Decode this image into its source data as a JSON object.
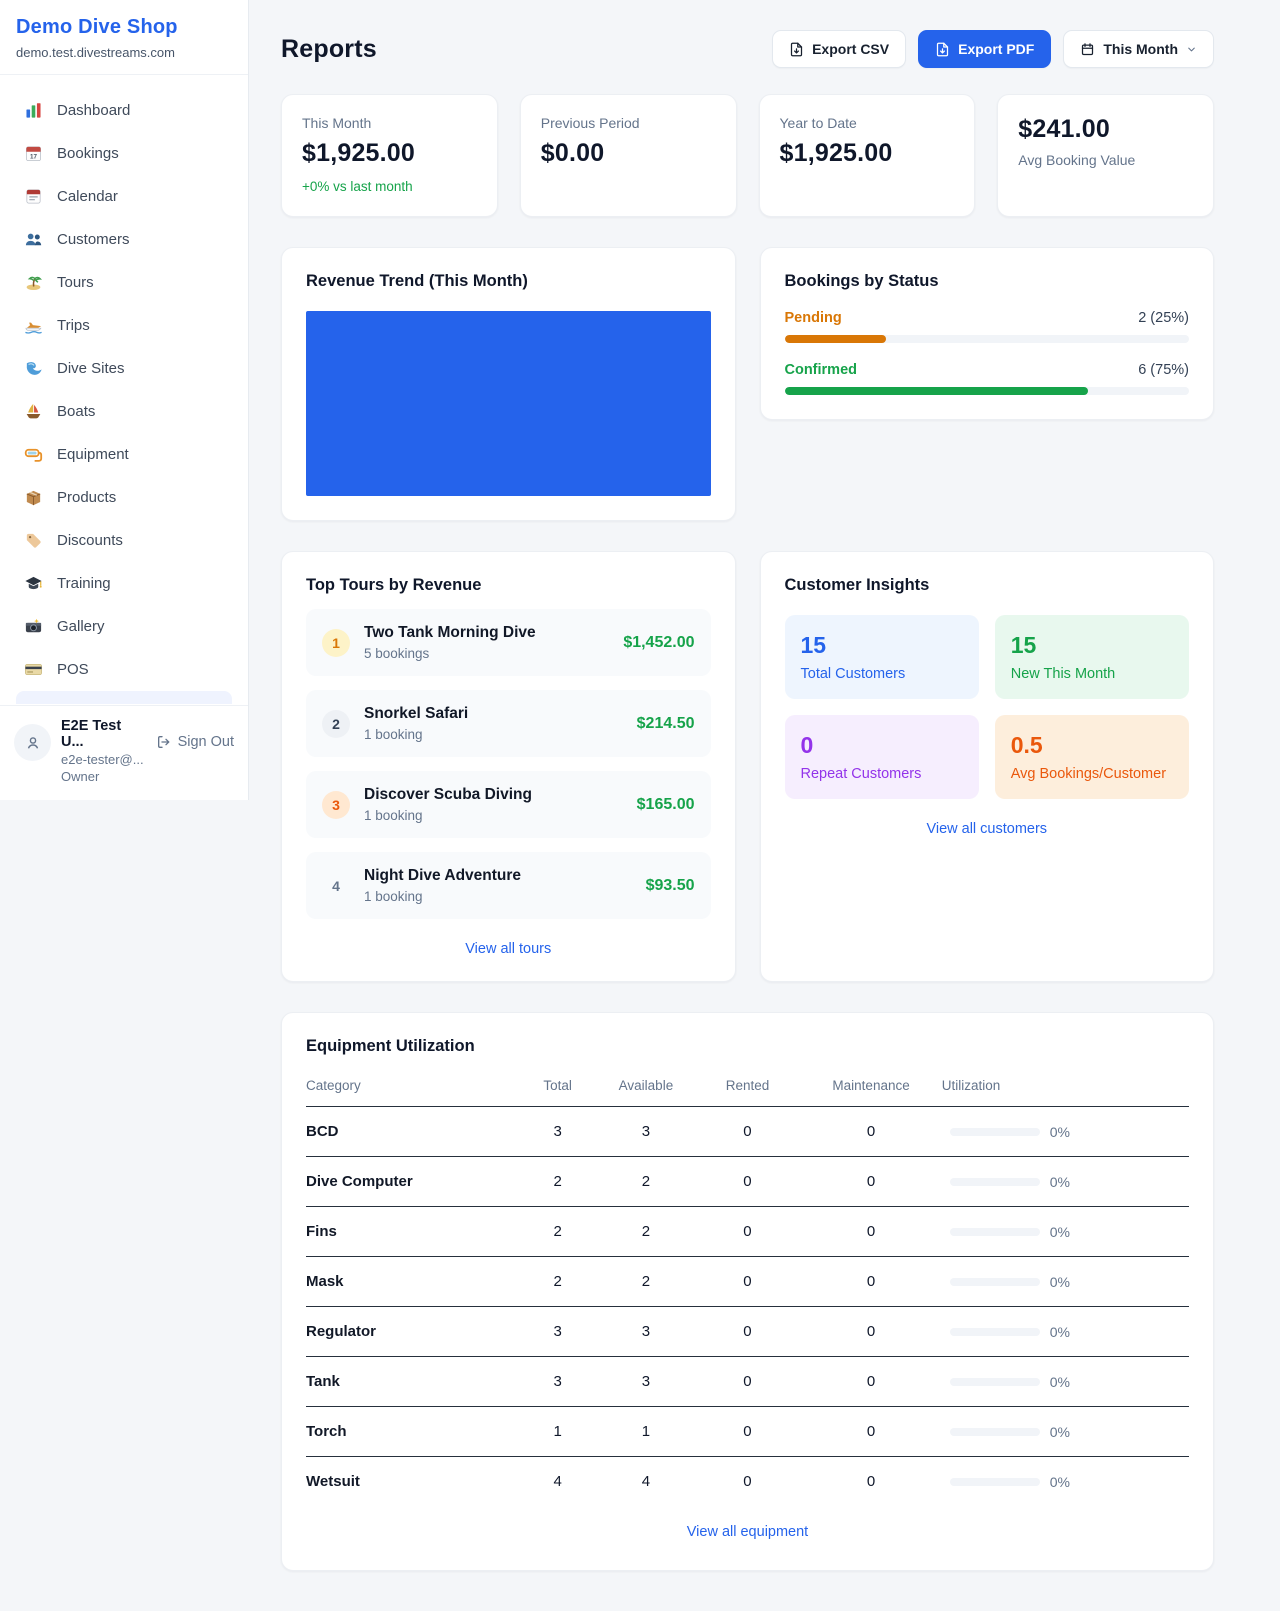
{
  "colors": {
    "accent_blue": "#2563eb",
    "green": "#16a34a",
    "amber": "#d97706",
    "orange": "#ea580c",
    "purple": "#9333ea"
  },
  "sidebar": {
    "brand": {
      "name": "Demo Dive Shop",
      "domain": "demo.test.divestreams.com"
    },
    "items": [
      {
        "icon": "bar-chart-icon",
        "label": "Dashboard"
      },
      {
        "icon": "calendar-date-icon",
        "label": "Bookings"
      },
      {
        "icon": "calendar-pad-icon",
        "label": "Calendar"
      },
      {
        "icon": "people-icon",
        "label": "Customers"
      },
      {
        "icon": "island-icon",
        "label": "Tours"
      },
      {
        "icon": "speedboat-icon",
        "label": "Trips"
      },
      {
        "icon": "wave-icon",
        "label": "Dive Sites"
      },
      {
        "icon": "sailboat-icon",
        "label": "Boats"
      },
      {
        "icon": "dive-mask-icon",
        "label": "Equipment"
      },
      {
        "icon": "package-icon",
        "label": "Products"
      },
      {
        "icon": "tag-icon",
        "label": "Discounts"
      },
      {
        "icon": "graduation-cap-icon",
        "label": "Training"
      },
      {
        "icon": "camera-icon",
        "label": "Gallery"
      },
      {
        "icon": "credit-card-icon",
        "label": "POS"
      }
    ],
    "user": {
      "name": "E2E Test U...",
      "email": "e2e-tester@...",
      "role": "Owner",
      "sign_out": "Sign Out"
    }
  },
  "header": {
    "title": "Reports",
    "export_csv": "Export CSV",
    "export_pdf": "Export PDF",
    "period": "This Month"
  },
  "stats": [
    {
      "label": "This Month",
      "value": "$1,925.00",
      "delta": "+0% vs last month"
    },
    {
      "label": "Previous Period",
      "value": "$0.00"
    },
    {
      "label": "Year to Date",
      "value": "$1,925.00"
    },
    {
      "label": "Avg Booking Value",
      "value": "$241.00"
    }
  ],
  "revenue_trend": {
    "title": "Revenue Trend (This Month)",
    "bar_color": "#2563eb"
  },
  "chart_data": [
    {
      "type": "bar",
      "title": "Revenue Trend (This Month)",
      "categories": [
        "This Month"
      ],
      "values": [
        1925
      ],
      "ylim": [
        0,
        1925
      ],
      "legend": "off",
      "grid": "off",
      "note": "single full-width solid blue bar, no axes or tick labels visible"
    },
    {
      "type": "bar",
      "title": "Bookings by Status",
      "categories": [
        "Pending",
        "Confirmed"
      ],
      "values": [
        2,
        6
      ],
      "percentages": [
        25,
        75
      ],
      "orientation": "horizontal-progress",
      "colors": [
        "#d97706",
        "#16a34a"
      ]
    }
  ],
  "bookings_by_status": {
    "title": "Bookings by Status",
    "rows": [
      {
        "label": "Pending",
        "count": "2 (25%)",
        "pct": 25,
        "color": "#d97706"
      },
      {
        "label": "Confirmed",
        "count": "6 (75%)",
        "pct": 75,
        "color": "#16a34a"
      }
    ]
  },
  "top_tours": {
    "title": "Top Tours by Revenue",
    "link": "View all tours",
    "items": [
      {
        "rank": "1",
        "name": "Two Tank Morning Dive",
        "bookings": "5 bookings",
        "revenue": "$1,452.00"
      },
      {
        "rank": "2",
        "name": "Snorkel Safari",
        "bookings": "1 booking",
        "revenue": "$214.50"
      },
      {
        "rank": "3",
        "name": "Discover Scuba Diving",
        "bookings": "1 booking",
        "revenue": "$165.00"
      },
      {
        "rank": "4",
        "name": "Night Dive Adventure",
        "bookings": "1 booking",
        "revenue": "$93.50"
      }
    ]
  },
  "customer_insights": {
    "title": "Customer Insights",
    "link": "View all customers",
    "tiles": [
      {
        "value": "15",
        "label": "Total Customers",
        "color": "#2563eb"
      },
      {
        "value": "15",
        "label": "New This Month",
        "color": "#16a34a"
      },
      {
        "value": "0",
        "label": "Repeat Customers",
        "color": "#9333ea"
      },
      {
        "value": "0.5",
        "label": "Avg Bookings/Customer",
        "color": "#ea580c"
      }
    ]
  },
  "equipment": {
    "title": "Equipment Utilization",
    "link": "View all equipment",
    "columns": [
      "Category",
      "Total",
      "Available",
      "Rented",
      "Maintenance",
      "Utilization"
    ],
    "rows": [
      {
        "category": "BCD",
        "total": "3",
        "available": "3",
        "rented": "0",
        "maintenance": "0",
        "utilization": "0%",
        "utilization_pct": 0
      },
      {
        "category": "Dive Computer",
        "total": "2",
        "available": "2",
        "rented": "0",
        "maintenance": "0",
        "utilization": "0%",
        "utilization_pct": 0
      },
      {
        "category": "Fins",
        "total": "2",
        "available": "2",
        "rented": "0",
        "maintenance": "0",
        "utilization": "0%",
        "utilization_pct": 0
      },
      {
        "category": "Mask",
        "total": "2",
        "available": "2",
        "rented": "0",
        "maintenance": "0",
        "utilization": "0%",
        "utilization_pct": 0
      },
      {
        "category": "Regulator",
        "total": "3",
        "available": "3",
        "rented": "0",
        "maintenance": "0",
        "utilization": "0%",
        "utilization_pct": 0
      },
      {
        "category": "Tank",
        "total": "3",
        "available": "3",
        "rented": "0",
        "maintenance": "0",
        "utilization": "0%",
        "utilization_pct": 0
      },
      {
        "category": "Torch",
        "total": "1",
        "available": "1",
        "rented": "0",
        "maintenance": "0",
        "utilization": "0%",
        "utilization_pct": 0
      },
      {
        "category": "Wetsuit",
        "total": "4",
        "available": "4",
        "rented": "0",
        "maintenance": "0",
        "utilization": "0%",
        "utilization_pct": 0
      }
    ]
  }
}
